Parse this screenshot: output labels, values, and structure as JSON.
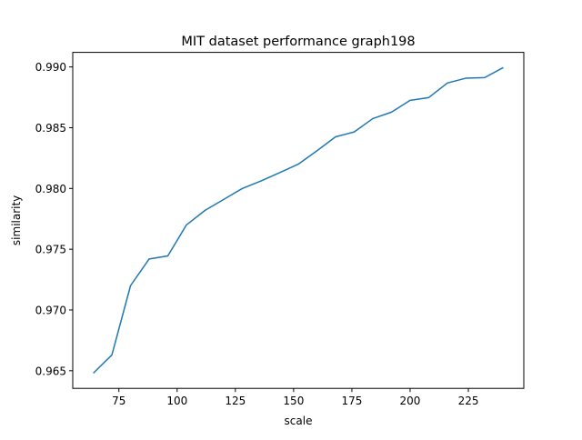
{
  "chart_data": {
    "type": "line",
    "title": "MIT dataset performance graph198",
    "xlabel": "scale",
    "ylabel": "similarity",
    "xlim": [
      55.2,
      248.8
    ],
    "ylim": [
      0.96355,
      0.9912
    ],
    "xticks": [
      75,
      100,
      125,
      150,
      175,
      200,
      225
    ],
    "xtick_labels": [
      "75",
      "100",
      "125",
      "150",
      "175",
      "200",
      "225"
    ],
    "yticks": [
      0.965,
      0.97,
      0.975,
      0.98,
      0.985,
      0.99
    ],
    "ytick_labels": [
      "0.965",
      "0.970",
      "0.975",
      "0.980",
      "0.985",
      "0.990"
    ],
    "grid": false,
    "line_color": "#1f77b4",
    "series": [
      {
        "x": [
          64,
          72,
          80,
          88,
          96,
          104,
          112,
          120,
          128,
          136,
          144,
          152,
          160,
          168,
          176,
          184,
          192,
          200,
          208,
          216,
          224,
          232,
          240
        ],
        "values": [
          0.9648,
          0.9663,
          0.972,
          0.9742,
          0.97445,
          0.977,
          0.9782,
          0.9791,
          0.98,
          0.98062,
          0.9813,
          0.982,
          0.9831,
          0.98425,
          0.98465,
          0.98575,
          0.98628,
          0.98725,
          0.98748,
          0.98868,
          0.98908,
          0.98912,
          0.98995
        ]
      }
    ]
  }
}
